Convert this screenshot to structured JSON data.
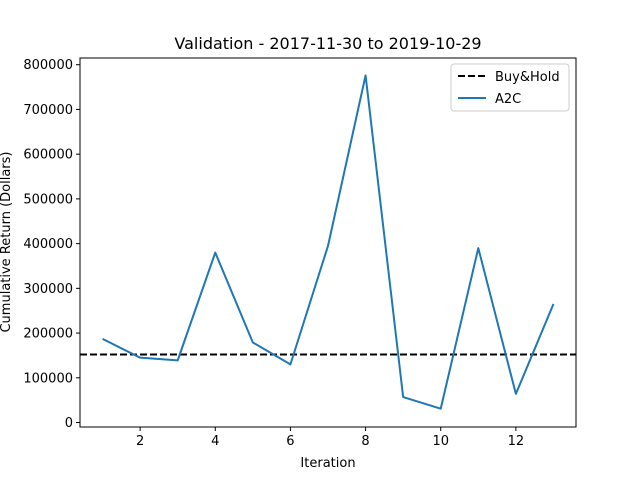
{
  "chart_data": {
    "type": "line",
    "title": "Validation - 2017-11-30 to 2019-10-29",
    "xlabel": "Iteration",
    "ylabel": "Cumulative Return (Dollars)",
    "xlim": [
      0.4,
      13.6
    ],
    "ylim": [
      -10000,
      815000
    ],
    "xticks": [
      2,
      4,
      6,
      8,
      10,
      12
    ],
    "xtick_labels": [
      "2",
      "4",
      "6",
      "8",
      "10",
      "12"
    ],
    "yticks": [
      0,
      100000,
      200000,
      300000,
      400000,
      500000,
      600000,
      700000,
      800000
    ],
    "ytick_labels": [
      "0",
      "100000",
      "200000",
      "300000",
      "400000",
      "500000",
      "600000",
      "700000",
      "800000"
    ],
    "grid": false,
    "legend_position": "top-right",
    "series": [
      {
        "name": "Buy&Hold",
        "style": "dashed",
        "color": "#000000",
        "y_constant": 152000
      },
      {
        "name": "A2C",
        "style": "solid",
        "color": "#1f77b4",
        "x": [
          1,
          2,
          3,
          4,
          5,
          6,
          7,
          8,
          9,
          10,
          11,
          12,
          13
        ],
        "values": [
          187000,
          145000,
          139000,
          380000,
          179000,
          130000,
          395000,
          776000,
          57000,
          31000,
          390000,
          64000,
          265000
        ]
      }
    ]
  }
}
